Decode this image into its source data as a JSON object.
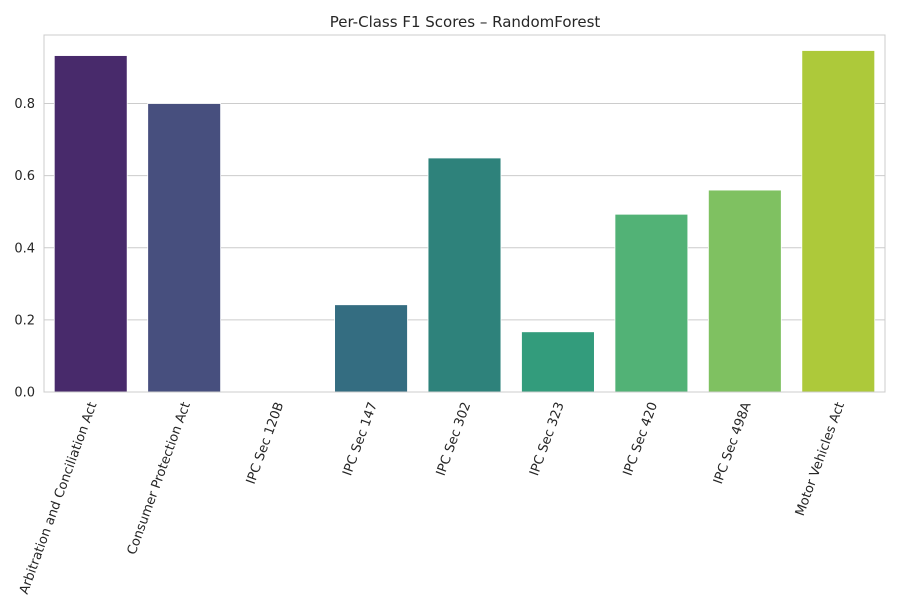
{
  "chart_data": {
    "type": "bar",
    "title": "Per-Class F1 Scores – RandomForest",
    "xlabel": "",
    "ylabel": "",
    "categories": [
      "Arbitration and Conciliation Act",
      "Consumer Protection Act",
      "IPC Sec 120B",
      "IPC Sec 147",
      "IPC Sec 302",
      "IPC Sec 323",
      "IPC Sec 420",
      "IPC Sec 498A",
      "Motor Vehicles Act"
    ],
    "values": [
      0.933,
      0.8,
      0.0,
      0.242,
      0.649,
      0.167,
      0.493,
      0.56,
      0.947
    ],
    "colors": [
      "#482a6b",
      "#474f7e",
      "#3b6a88",
      "#346d81",
      "#2e827b",
      "#339c7c",
      "#52b276",
      "#7fc161",
      "#adc93a"
    ],
    "ylim": [
      0,
      0.99
    ],
    "yticks": [
      "0.0",
      "0.2",
      "0.4",
      "0.6",
      "0.8"
    ],
    "grid": "y"
  }
}
